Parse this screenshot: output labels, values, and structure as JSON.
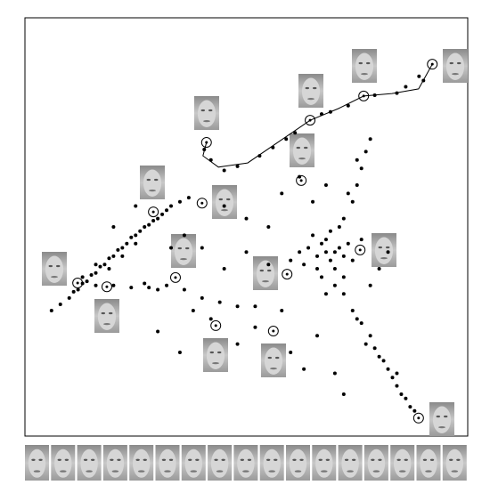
{
  "chart_data": {
    "type": "scatter",
    "xlim": [
      0,
      100
    ],
    "ylim": [
      0,
      100
    ],
    "series": [
      {
        "color": "#000000",
        "marker": "dot",
        "x": [
          6,
          8,
          10,
          11,
          12,
          13,
          14,
          15,
          16,
          17,
          18,
          19,
          20,
          21,
          22,
          23,
          24,
          25,
          26,
          27,
          28,
          29,
          30,
          31,
          32,
          33,
          35,
          37,
          13,
          16,
          19,
          22,
          25,
          42,
          45,
          48,
          53,
          56,
          59,
          61,
          67,
          69,
          73,
          79,
          84,
          86,
          89,
          90,
          40.5,
          64,
          66,
          67,
          68,
          69,
          70,
          71,
          72,
          68,
          66,
          70,
          73,
          65,
          69,
          74,
          72,
          67,
          62,
          60,
          76,
          71,
          63,
          70,
          68,
          72,
          74,
          75,
          76,
          77,
          78,
          73,
          75,
          72,
          74,
          76,
          78,
          79,
          80,
          82,
          83,
          84,
          85,
          86,
          87,
          88,
          81,
          77,
          75,
          84,
          16,
          20,
          24,
          28,
          32,
          36,
          40,
          44,
          48,
          52,
          27,
          30,
          36,
          40,
          45,
          50,
          55,
          38,
          42,
          48,
          52,
          58,
          60,
          63,
          66,
          55,
          50,
          45,
          58,
          62,
          65,
          68,
          30,
          35,
          80,
          82,
          78,
          20,
          25,
          33,
          70,
          72
        ],
        "y": [
          30,
          31.5,
          33,
          34.5,
          35,
          36.5,
          37,
          38.5,
          39,
          40.5,
          41,
          42.5,
          43,
          44.5,
          45,
          46,
          47.5,
          48,
          49,
          50,
          50.5,
          51.5,
          52,
          53,
          54,
          55,
          56,
          57,
          38,
          41,
          40,
          43,
          46,
          66,
          63.5,
          64.5,
          67,
          69,
          71,
          72.5,
          77,
          77.5,
          79,
          81.5,
          82,
          83.5,
          86,
          85,
          68.5,
          45,
          43,
          46,
          44,
          42,
          44,
          45,
          43,
          47,
          40,
          40,
          46,
          48,
          49,
          42,
          38,
          38,
          44,
          42,
          47,
          50,
          41,
          36,
          34,
          52,
          56,
          60,
          64,
          68,
          71,
          58,
          66,
          34,
          30,
          27,
          24,
          21,
          19,
          16,
          14,
          12,
          10,
          9,
          7,
          6,
          18,
          22,
          28,
          15,
          36,
          36,
          35.5,
          35.5,
          36,
          35,
          33,
          32,
          31,
          31,
          36.5,
          35,
          48,
          45,
          40,
          44,
          41,
          30,
          28,
          22,
          26,
          30,
          20,
          16,
          24,
          50,
          52,
          55,
          58,
          62,
          56,
          60,
          25,
          20,
          40,
          44,
          36,
          50,
          55,
          45,
          15,
          10
        ]
      },
      {
        "color": "#000000",
        "marker": "ring",
        "x": [
          92.0,
          76.5,
          64.4,
          41.0,
          62.4,
          40.0,
          29.0,
          11.9,
          18.5,
          34.0,
          59.2,
          75.7,
          43.1,
          56.1,
          88.9
        ],
        "y": [
          88.9,
          81.3,
          75.5,
          70.2,
          61.1,
          55.7,
          53.6,
          36.6,
          35.7,
          37.9,
          38.7,
          44.5,
          26.4,
          25.1,
          4.3
        ]
      },
      {
        "color": "#000000",
        "marker": "line",
        "x": [
          41.0,
          40.2,
          43.7,
          50.3,
          64.4,
          70.8,
          76.5,
          82.9,
          88.9,
          92.0
        ],
        "y": [
          70.2,
          67.0,
          64.3,
          65.3,
          75.5,
          78.3,
          81.3,
          81.9,
          83.0,
          88.9
        ]
      }
    ]
  }
}
